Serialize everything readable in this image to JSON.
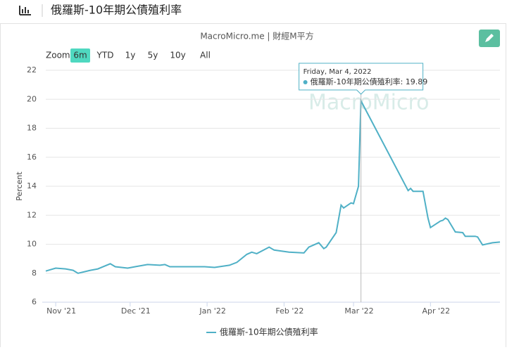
{
  "header": {
    "title": "俄羅斯-10年期公債殖利率"
  },
  "chart_data": {
    "type": "line",
    "subtitle": "MacroMicro.me | 財經M平方",
    "watermark": "MacroMicro",
    "zoom": {
      "label": "Zoom",
      "options": [
        "6m",
        "YTD",
        "1y",
        "5y",
        "10y",
        "All"
      ],
      "active": "6m"
    },
    "y_label": "Percent",
    "ylim": [
      6,
      22
    ],
    "yticks": [
      6,
      8,
      10,
      12,
      14,
      16,
      18,
      20,
      22
    ],
    "grid": true,
    "xlim": [
      "2021-10-28",
      "2022-04-29"
    ],
    "xticks": [
      {
        "value": "2021-11-01",
        "label": "Nov '21"
      },
      {
        "value": "2021-12-01",
        "label": "Dec '21"
      },
      {
        "value": "2022-01-01",
        "label": "Jan '22"
      },
      {
        "value": "2022-02-01",
        "label": "Feb '22"
      },
      {
        "value": "2022-03-01",
        "label": "Mar '22"
      },
      {
        "value": "2022-04-01",
        "label": "Apr '22"
      }
    ],
    "x": [
      "2021-10-28",
      "2021-11-01",
      "2021-11-05",
      "2021-11-08",
      "2021-11-10",
      "2021-11-15",
      "2021-11-18",
      "2021-11-23",
      "2021-11-25",
      "2021-11-30",
      "2021-12-03",
      "2021-12-08",
      "2021-12-13",
      "2021-12-15",
      "2021-12-17",
      "2021-12-22",
      "2021-12-31",
      "2022-01-04",
      "2022-01-10",
      "2022-01-13",
      "2022-01-17",
      "2022-01-19",
      "2022-01-21",
      "2022-01-26",
      "2022-01-28",
      "2022-02-03",
      "2022-02-09",
      "2022-02-11",
      "2022-02-15",
      "2022-02-17",
      "2022-02-18",
      "2022-02-22",
      "2022-02-24",
      "2022-02-25",
      "2022-02-28",
      "2022-03-01",
      "2022-03-03",
      "2022-03-04",
      "2022-03-23",
      "2022-03-24",
      "2022-03-25",
      "2022-03-29",
      "2022-03-31",
      "2022-04-01",
      "2022-04-05",
      "2022-04-06",
      "2022-04-07",
      "2022-04-08",
      "2022-04-11",
      "2022-04-14",
      "2022-04-15",
      "2022-04-19",
      "2022-04-20",
      "2022-04-22",
      "2022-04-26",
      "2022-04-29"
    ],
    "series": [
      {
        "name": "俄羅斯-10年期公債殖利率",
        "color": "#4fb0c6",
        "values": [
          8.15,
          8.35,
          8.3,
          8.2,
          8.0,
          8.2,
          8.3,
          8.65,
          8.45,
          8.35,
          8.45,
          8.6,
          8.55,
          8.6,
          8.45,
          8.45,
          8.45,
          8.4,
          8.55,
          8.75,
          9.3,
          9.45,
          9.35,
          9.8,
          9.6,
          9.45,
          9.4,
          9.8,
          10.1,
          9.7,
          9.8,
          10.8,
          12.7,
          12.5,
          12.85,
          12.8,
          14.0,
          19.89,
          13.7,
          13.85,
          13.65,
          13.65,
          11.8,
          11.15,
          11.6,
          11.65,
          11.8,
          11.7,
          10.85,
          10.8,
          10.55,
          10.55,
          10.5,
          9.95,
          10.1,
          10.15
        ]
      }
    ],
    "tooltip": {
      "date": "Friday, Mar 4, 2022",
      "index": 37
    }
  }
}
